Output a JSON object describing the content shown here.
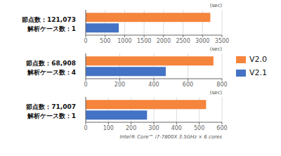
{
  "chart_data": [
    {
      "type": "bar",
      "orientation": "horizontal",
      "title": "節点数：121,073",
      "subtitle": "解析ケース数：1",
      "xlabel": "(sec)",
      "categories": [
        null
      ],
      "series": [
        {
          "name": "V2.0",
          "color": "#F5843C",
          "values": [
            3200
          ]
        },
        {
          "name": "V2.1",
          "color": "#4472C4",
          "values": [
            850
          ]
        }
      ],
      "xlim": [
        0,
        3500
      ],
      "xticks": [
        0,
        500,
        1000,
        1500,
        2000,
        2500,
        3000,
        3500
      ],
      "grid": true,
      "tick_labels": "x"
    },
    {
      "type": "bar",
      "orientation": "horizontal",
      "title": "節点数：68,908",
      "subtitle": "解析ケース数：4",
      "xlabel": "(sec)",
      "categories": [
        null
      ],
      "series": [
        {
          "name": "V2.0",
          "color": "#F5843C",
          "values": [
            750
          ]
        },
        {
          "name": "V2.1",
          "color": "#4472C4",
          "values": [
            470
          ]
        }
      ],
      "xlim": [
        0,
        800
      ],
      "xticks": [
        0,
        200,
        400,
        600,
        800
      ],
      "grid": true,
      "tick_labels": "x",
      "legend": "right"
    },
    {
      "type": "bar",
      "orientation": "horizontal",
      "title": "節点数：71,007",
      "subtitle": "解析ケース数：1",
      "xlabel": "(sec)",
      "categories": [
        null
      ],
      "series": [
        {
          "name": "V2.0",
          "color": "#F5843C",
          "values": [
            530
          ]
        },
        {
          "name": "V2.1",
          "color": "#4472C4",
          "values": [
            270
          ]
        }
      ],
      "xlim": [
        0,
        600
      ],
      "xticks": [
        0,
        100,
        200,
        300,
        400,
        500,
        600
      ],
      "grid": true,
      "tick_labels": "x",
      "annotations": [
        "Intel® Core™ i7-7800X 3.5GHz × 6 cores"
      ]
    }
  ]
}
